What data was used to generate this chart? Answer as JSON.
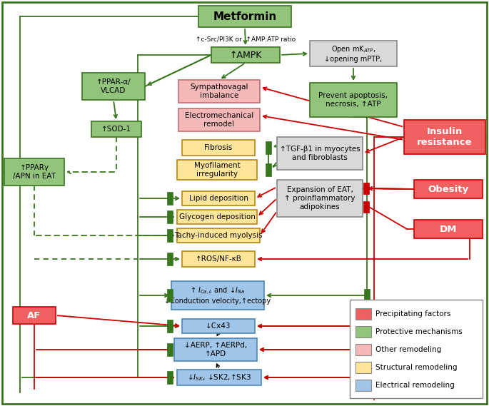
{
  "fig_width": 6.85,
  "fig_height": 5.69,
  "dpi": 100,
  "colors": {
    "red_box": "#f06060",
    "green_box": "#92c47c",
    "pink_box": "#f4b8b8",
    "yellow_box": "#ffe599",
    "blue_box": "#9fc5e8",
    "gray_box": "#d9d9d9",
    "green_dark": "#38761d",
    "red_dark": "#cc0000"
  },
  "legend": [
    {
      "label": "Precipitating factors",
      "color": "#f06060"
    },
    {
      "label": "Protective mechanisms",
      "color": "#92c47c"
    },
    {
      "label": "Other remodeling",
      "color": "#f4b8b8"
    },
    {
      "label": "Structural remodeling",
      "color": "#ffe599"
    },
    {
      "label": "Electrical remodeling",
      "color": "#9fc5e8"
    }
  ]
}
